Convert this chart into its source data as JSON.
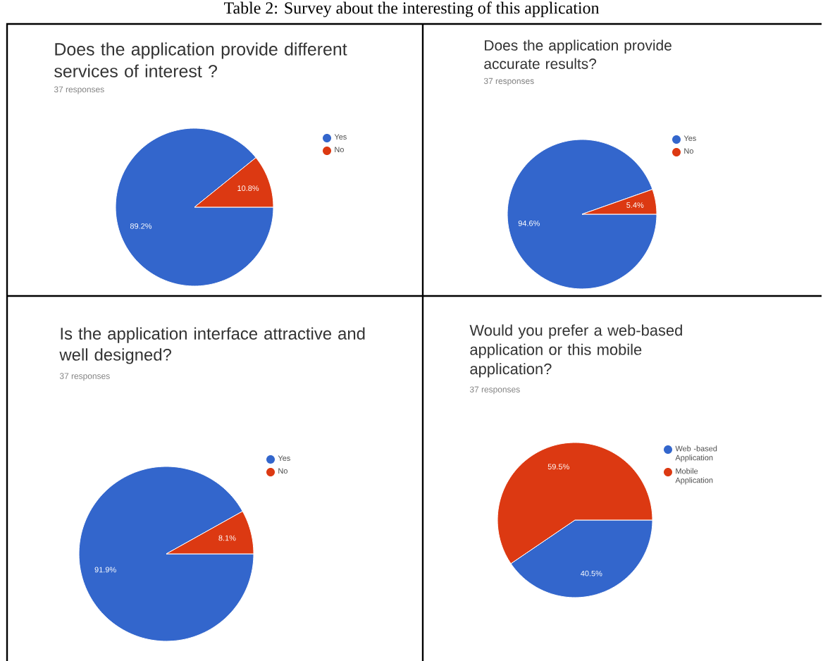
{
  "chart_data": [
    {
      "type": "pie",
      "title": "Does the application provide different services of interest ?",
      "subtitle": "37 responses",
      "categories": [
        "Yes",
        "No"
      ],
      "values": [
        89.2,
        10.8
      ],
      "colors": [
        "#3366cc",
        "#dc3912"
      ],
      "value_labels": [
        "89.2%",
        "10.8%"
      ],
      "legend": "right",
      "annotations": [
        "Table 2: Survey about the interesting of this application"
      ]
    },
    {
      "type": "pie",
      "title": "Does the application provide accurate results?",
      "subtitle": "37 responses",
      "categories": [
        "Yes",
        "No"
      ],
      "values": [
        94.6,
        5.4
      ],
      "colors": [
        "#3366cc",
        "#dc3912"
      ],
      "value_labels": [
        "94.6%",
        "5.4%"
      ],
      "legend": "right"
    },
    {
      "type": "pie",
      "title": "Is the application interface attractive and well designed?",
      "subtitle": "37 responses",
      "categories": [
        "Yes",
        "No"
      ],
      "values": [
        91.9,
        8.1
      ],
      "colors": [
        "#3366cc",
        "#dc3912"
      ],
      "value_labels": [
        "91.9%",
        "8.1%"
      ],
      "legend": "right"
    },
    {
      "type": "pie",
      "title": "Would you prefer a web-based application or this mobile application?",
      "subtitle": "37 responses",
      "categories": [
        "Web -based Application",
        "Mobile Application"
      ],
      "values": [
        40.5,
        59.5
      ],
      "colors": [
        "#3366cc",
        "#dc3912"
      ],
      "value_labels": [
        "40.5%",
        "59.5%"
      ],
      "legend": "right"
    }
  ]
}
